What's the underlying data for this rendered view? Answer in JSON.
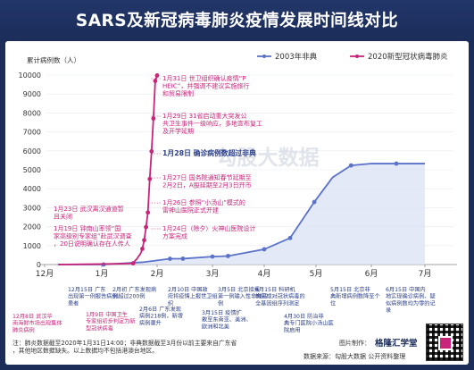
{
  "title": "SARS及新冠病毒肺炎疫情发展时间线对比",
  "chart_data": {
    "type": "line",
    "ylabel": "累计病例数（人）",
    "ylim": [
      0,
      10000
    ],
    "y_ticks": [
      0,
      1000,
      2000,
      3000,
      4000,
      5000,
      6000,
      7000,
      8000,
      9000,
      10000
    ],
    "x_ticks": [
      "12月",
      "1月",
      "2月",
      "3月",
      "4月",
      "5月",
      "6月",
      "7月"
    ],
    "series": [
      {
        "name": "2003年非典",
        "color": "#5b72c9",
        "points": [
          [
            "2002-12-08",
            0
          ],
          [
            "2003-01-02",
            4
          ],
          [
            "2003-01-23",
            120
          ],
          [
            "2003-02-08",
            305
          ],
          [
            "2003-02-15",
            310
          ],
          [
            "2003-03-01",
            420
          ],
          [
            "2003-03-10",
            450
          ],
          [
            "2003-03-31",
            806
          ],
          [
            "2003-04-16",
            1400
          ],
          [
            "2003-04-30",
            3300
          ],
          [
            "2003-05-10",
            4600
          ],
          [
            "2003-05-20",
            5230
          ],
          [
            "2003-06-01",
            5329
          ],
          [
            "2003-06-15",
            5327
          ],
          [
            "2003-07-15",
            5327
          ]
        ]
      },
      {
        "name": "2020新型冠状病毒肺炎",
        "color": "#c8247a",
        "points": [
          [
            "2019-12-08",
            0
          ],
          [
            "2019-12-31",
            27
          ],
          [
            "2020-01-10",
            41
          ],
          [
            "2020-01-18",
            62
          ],
          [
            "2020-01-19",
            198
          ],
          [
            "2020-01-20",
            291
          ],
          [
            "2020-01-21",
            440
          ],
          [
            "2020-01-22",
            571
          ],
          [
            "2020-01-23",
            830
          ],
          [
            "2020-01-24",
            1287
          ],
          [
            "2020-01-25",
            1975
          ],
          [
            "2020-01-26",
            2744
          ],
          [
            "2020-01-27",
            4515
          ],
          [
            "2020-01-28",
            5974
          ],
          [
            "2020-01-29",
            7711
          ],
          [
            "2020-01-30",
            9692
          ],
          [
            "2020-01-31",
            9980
          ]
        ]
      }
    ],
    "legend": [
      "2003年非典",
      "2020新型冠状病毒肺炎"
    ],
    "annotations_2020": [
      "1月31日 世卫组织确认疫情“PHEIC”，并强调不建议实施旅行和贸易限制",
      "1月29日 31省启动重大突发公共卫生事件一级响应，多地宣布复工及开学延期",
      "1月28日 确诊病例数超过非典",
      "1月27日 国务院通知春节延期至2月2日，A股延期至2月3日开市",
      "1月26日 参照“小汤山”模式的雷神山医院正式开建",
      "1月24日（除夕）火神山医院设计方案完成",
      "1月23日 武汉离汉通道暂且关闭",
      "1月19日 钟南山率领“国家高级别专家组”赴武汉调查，20日说明确认存在人传人"
    ],
    "annotations_2003": [
      "12月8日 武汉华南海鲜市场出现集体肺炎病例",
      "12月15日 广东出现第一例报告病例患者",
      "1月9日 中国卫生专家组初步判定为新型冠状病毒",
      "2月初 广东发现病例超过200例",
      "2月6日 广东发现病例218例，新增病例骤升",
      "2月10日 中国政府将疫情上报世卫组织",
      "3月5日 北京接报第一例输入性非典病例",
      "3月15日 疫情扩散至东南亚、美洲、欧洲和北美",
      "4月15日 科研机构完成对冠状病毒的全基因组序列测定",
      "4月30日 防治非典专门医院小汤山医院启用",
      "5月15日 北京非典新增病例数降至个位",
      "6月15日 中国内地实现确诊病例、疑似病例数均为零的记录"
    ],
    "footnote": "注：肺炎数据截至2020年1月31日14:00；非典数据截至3月份以前主要来自广东省，其他地区数据缺失。以上数据均不包括港澳台地区。",
    "source": "数据来源：勾股大数据  公开资料整理",
    "image_credit": "图片制作：",
    "brand": "格隆汇学堂",
    "watermark": "勾股大数据"
  }
}
